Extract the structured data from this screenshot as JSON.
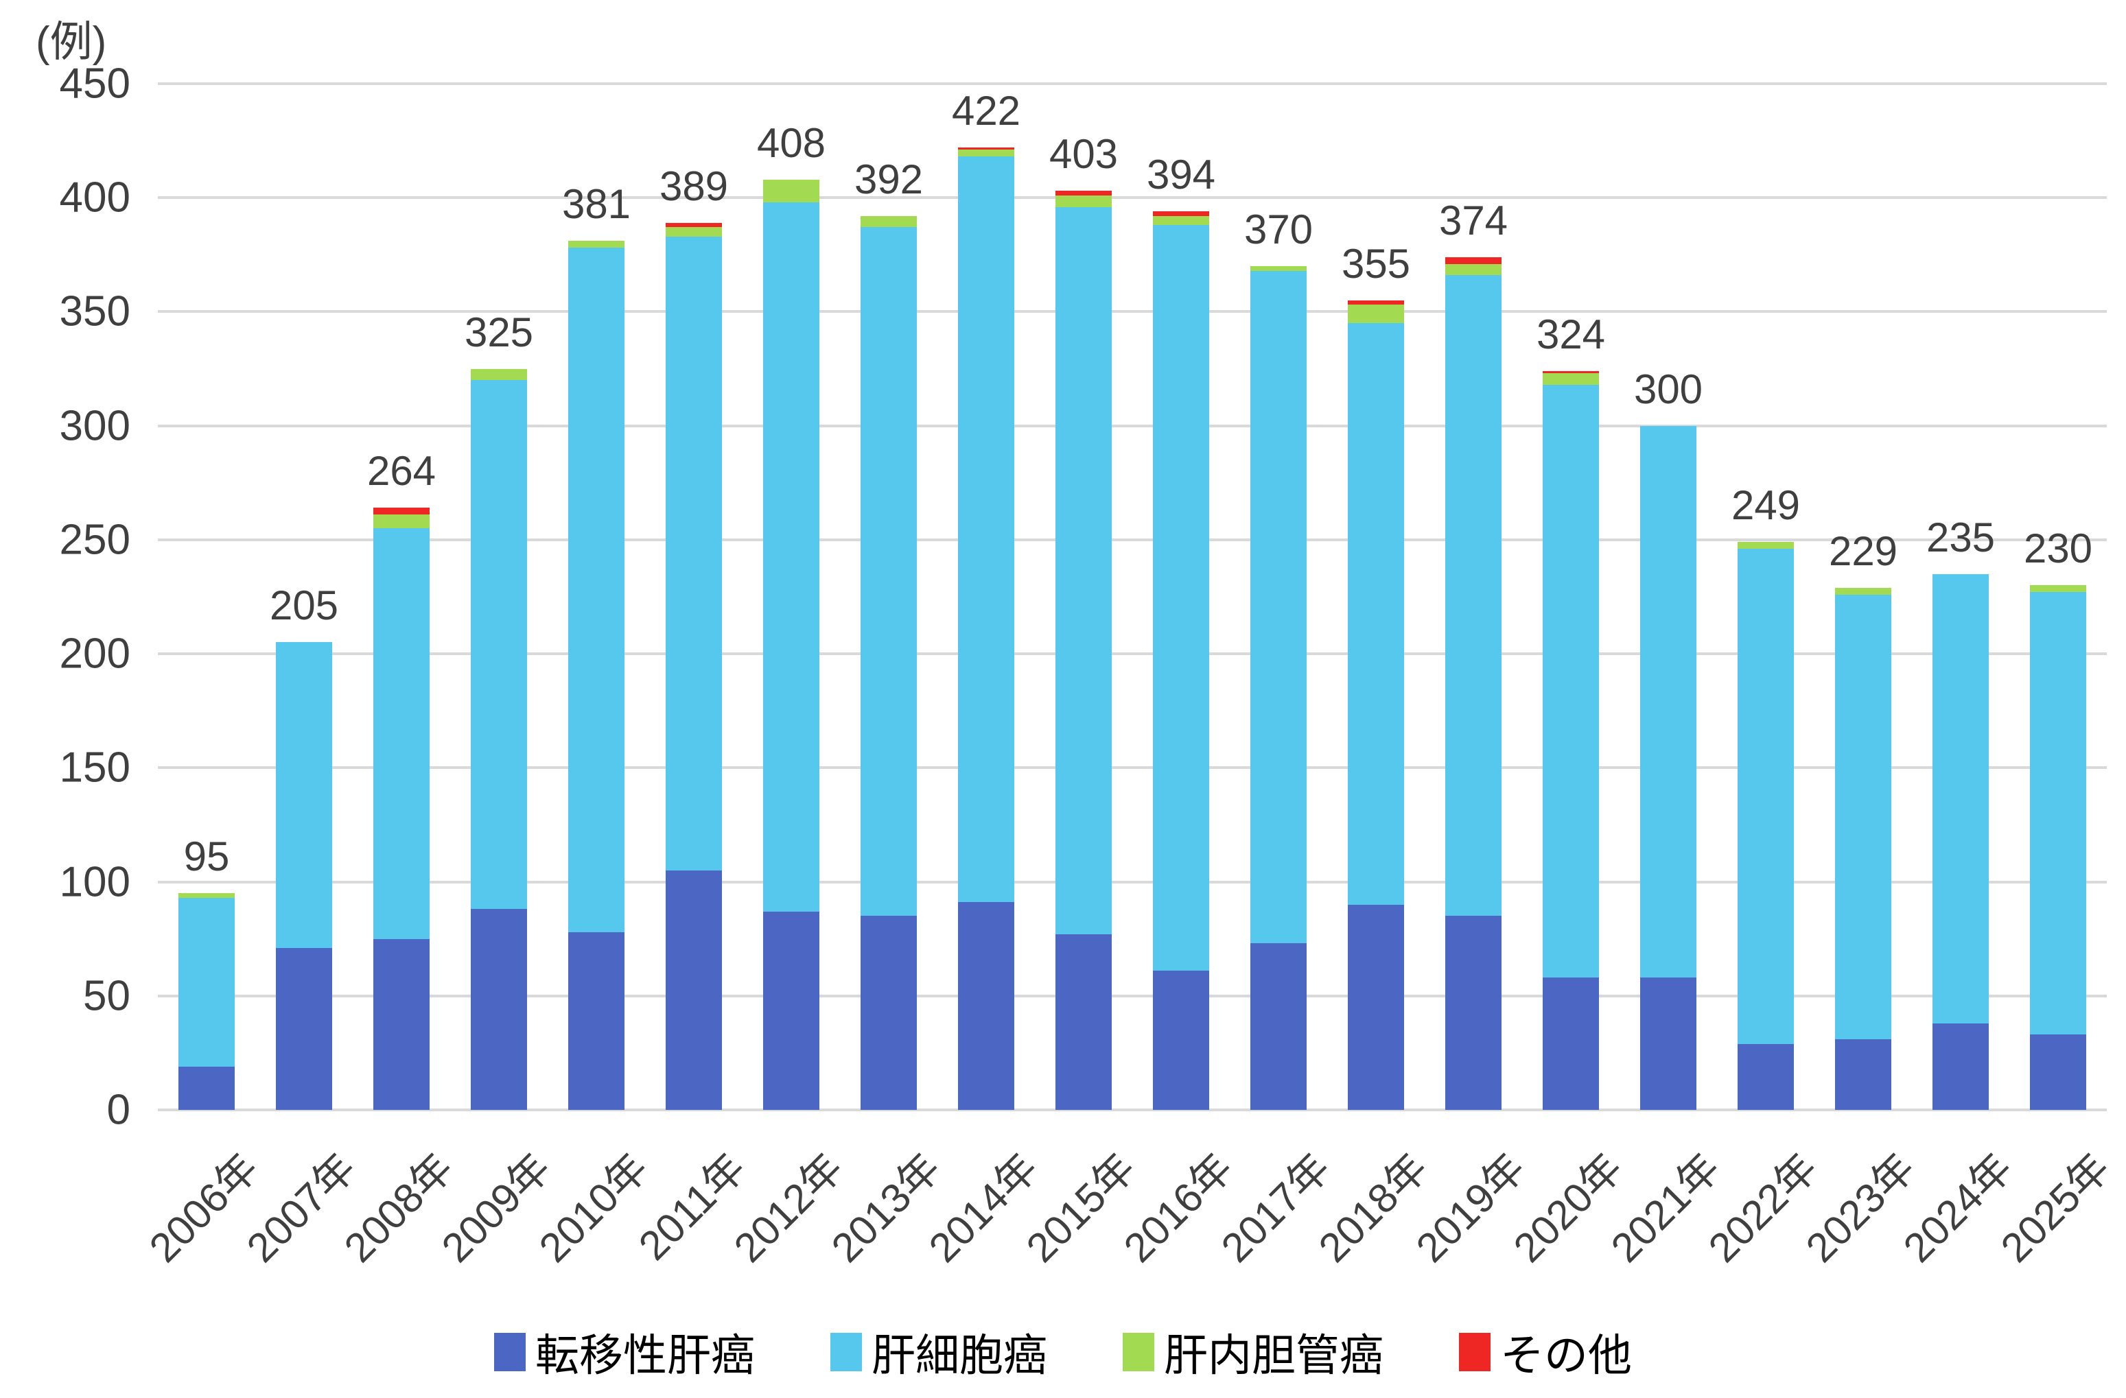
{
  "y_axis": {
    "unit_label": "(例)",
    "ticks": [
      0,
      50,
      100,
      150,
      200,
      250,
      300,
      350,
      400,
      450
    ]
  },
  "x_axis": {
    "labels": [
      "2006年",
      "2007年",
      "2008年",
      "2009年",
      "2010年",
      "2011年",
      "2012年",
      "2013年",
      "2014年",
      "2015年",
      "2016年",
      "2017年",
      "2018年",
      "2019年",
      "2020年",
      "2021年",
      "2022年",
      "2023年",
      "2024年",
      "2025年"
    ]
  },
  "legend": {
    "items": [
      {
        "label": "転移性肝癌",
        "color": "#4c66c4"
      },
      {
        "label": "肝細胞癌",
        "color": "#56c8ee"
      },
      {
        "label": "肝内胆管癌",
        "color": "#a2db51"
      },
      {
        "label": "その他",
        "color": "#ee2624"
      }
    ]
  },
  "colors": {
    "gridline": "#d9d9d9",
    "text": "#3f3f3f"
  },
  "chart_data": {
    "type": "bar",
    "stacked": true,
    "title": "",
    "xlabel": "",
    "ylabel": "(例)",
    "ylim": [
      0,
      450
    ],
    "ytick_step": 50,
    "grid": true,
    "legend_position": "bottom",
    "categories": [
      "2006年",
      "2007年",
      "2008年",
      "2009年",
      "2010年",
      "2011年",
      "2012年",
      "2013年",
      "2014年",
      "2015年",
      "2016年",
      "2017年",
      "2018年",
      "2019年",
      "2020年",
      "2021年",
      "2022年",
      "2023年",
      "2024年",
      "2025年"
    ],
    "series": [
      {
        "name": "転移性肝癌",
        "color": "#4c66c4",
        "values": [
          19,
          71,
          75,
          88,
          78,
          105,
          87,
          85,
          91,
          77,
          61,
          73,
          90,
          85,
          58,
          58,
          29,
          31,
          38,
          33
        ]
      },
      {
        "name": "肝細胞癌",
        "color": "#56c8ee",
        "values": [
          74,
          134,
          180,
          232,
          300,
          278,
          311,
          302,
          327,
          319,
          327,
          295,
          255,
          281,
          260,
          242,
          217,
          195,
          197,
          194
        ]
      },
      {
        "name": "肝内胆管癌",
        "color": "#a2db51",
        "values": [
          2,
          0,
          6,
          5,
          3,
          4,
          10,
          5,
          3,
          5,
          4,
          2,
          8,
          5,
          5,
          0,
          3,
          3,
          0,
          3
        ]
      },
      {
        "name": "その他",
        "color": "#ee2624",
        "values": [
          0,
          0,
          3,
          0,
          0,
          2,
          0,
          0,
          1,
          2,
          2,
          0,
          2,
          3,
          1,
          0,
          0,
          0,
          0,
          0
        ]
      }
    ],
    "totals": [
      95,
      205,
      264,
      325,
      381,
      389,
      408,
      392,
      422,
      403,
      394,
      370,
      355,
      374,
      324,
      300,
      249,
      229,
      235,
      230
    ]
  }
}
